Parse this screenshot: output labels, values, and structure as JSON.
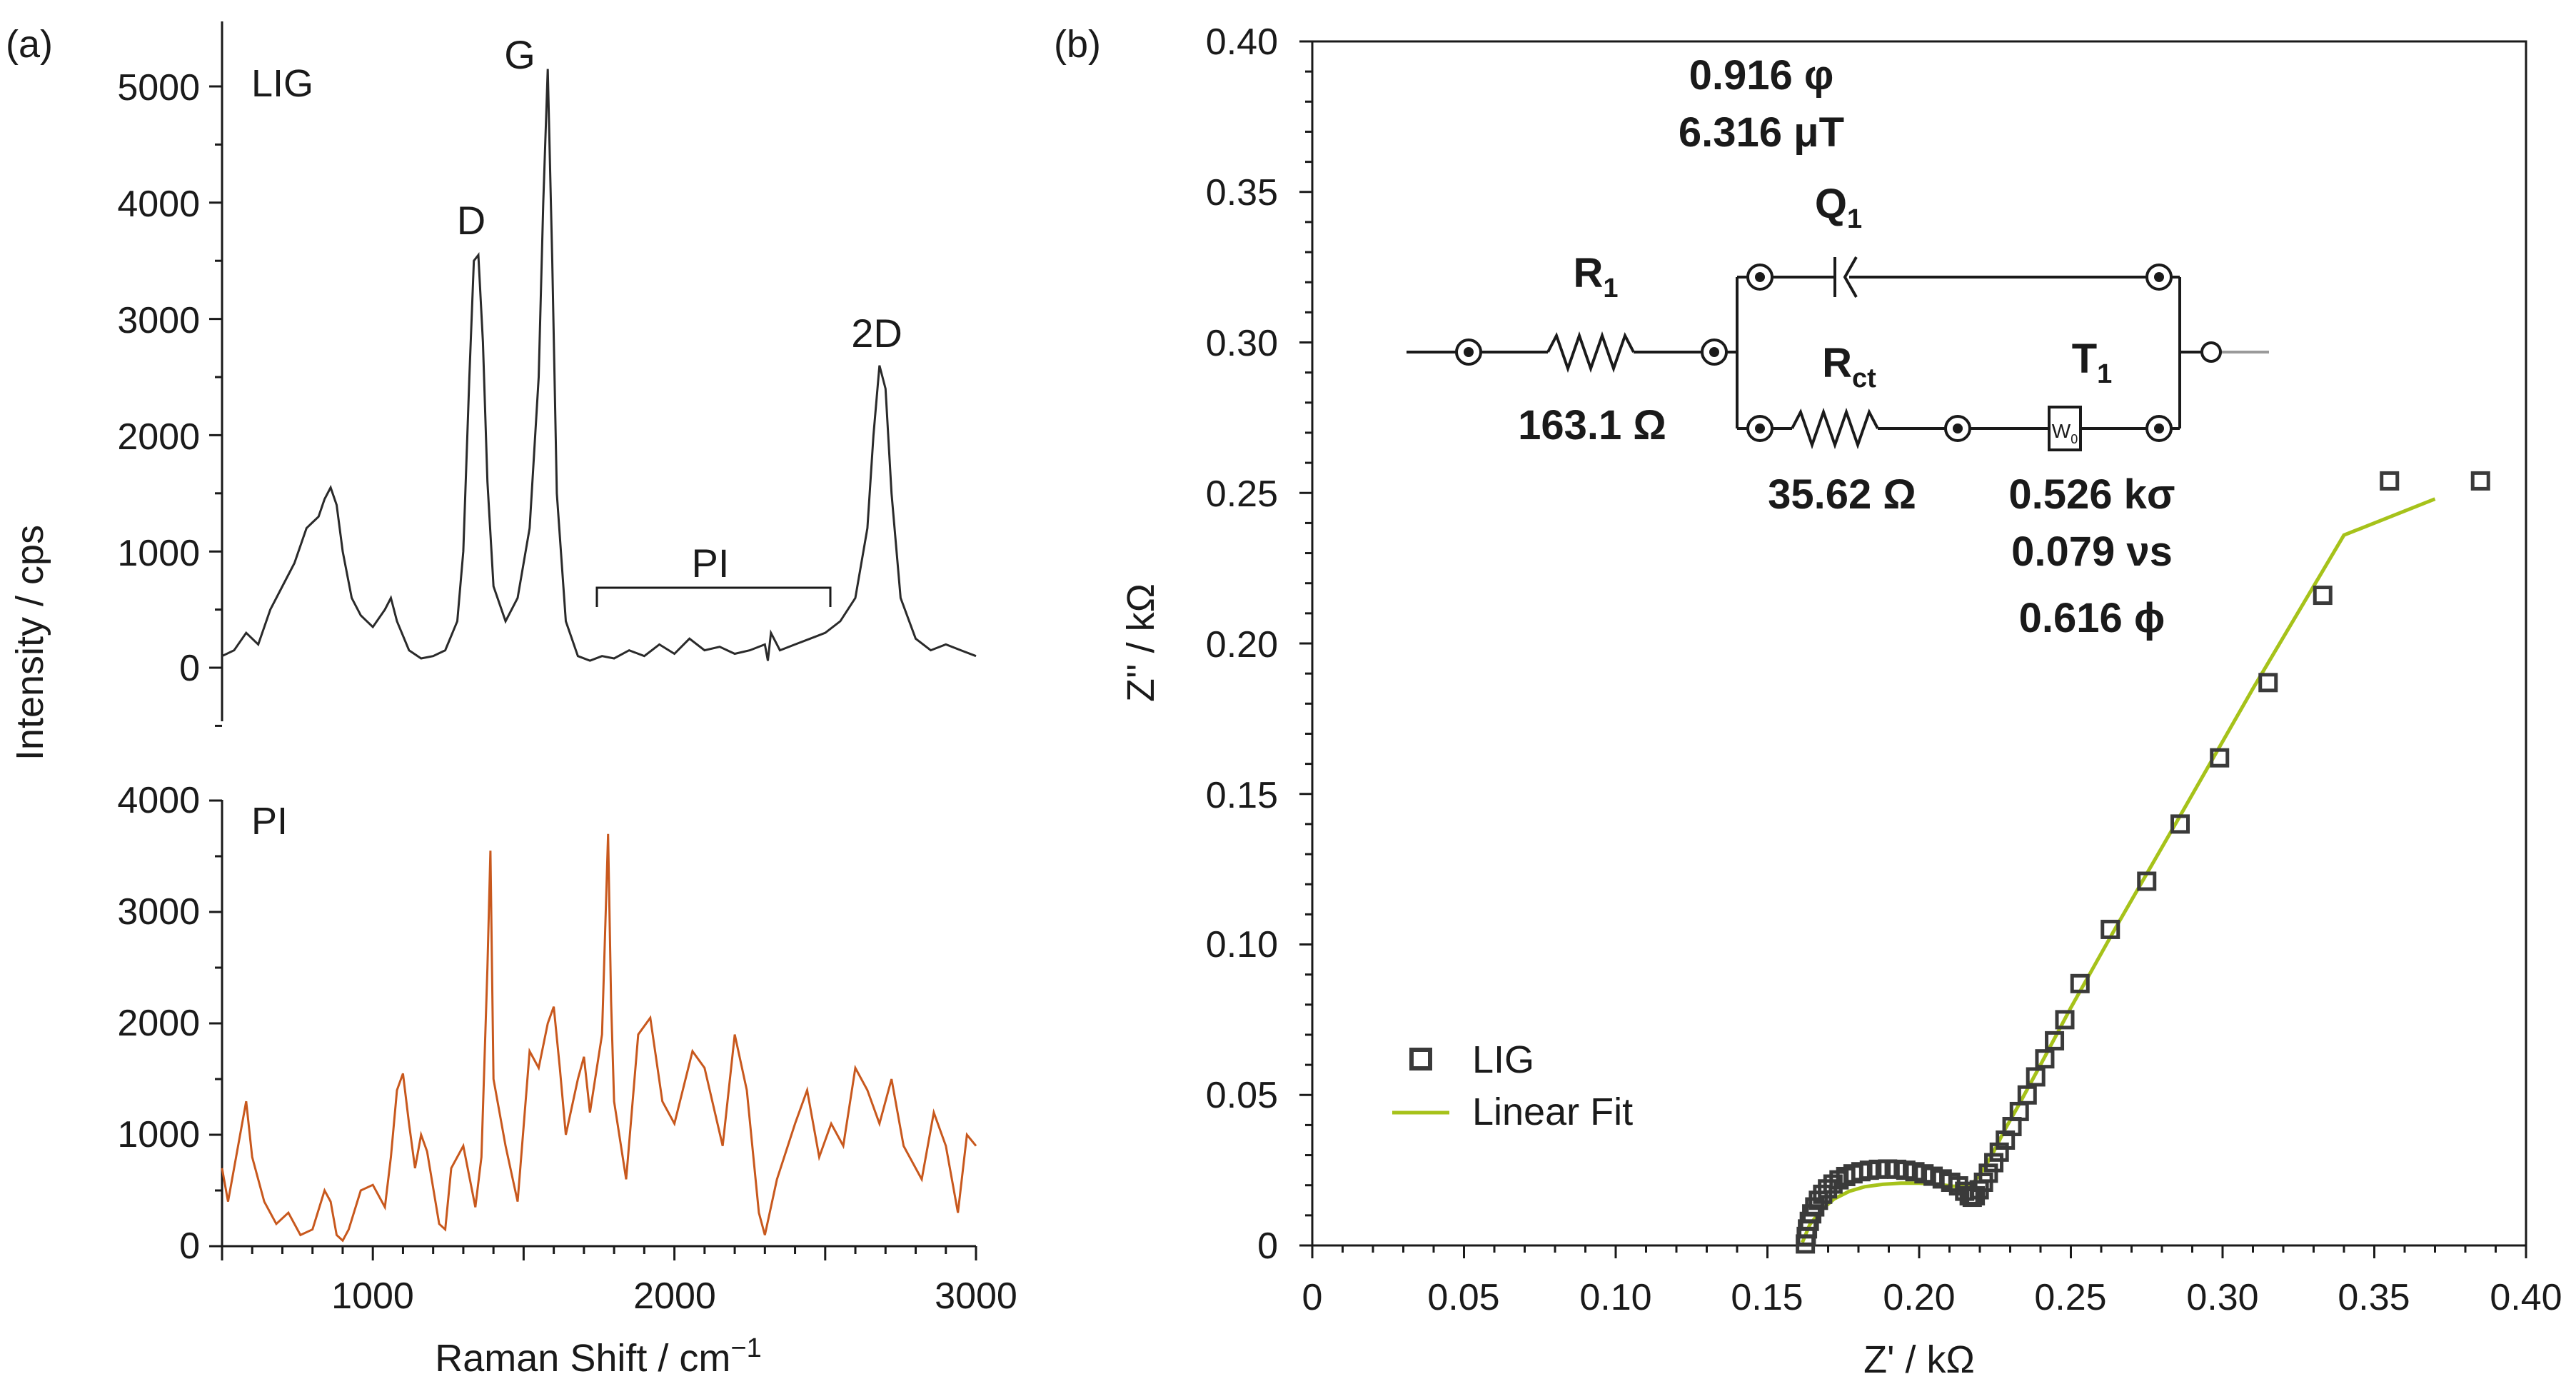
{
  "panel_a": {
    "label": "(a)",
    "ylabel": "Intensity / cps",
    "xlabel_base": "Raman Shift / cm",
    "xlabel_sup": "−1",
    "lig_label": "LIG",
    "pi_label": "PI",
    "peak_D": "D",
    "peak_G": "G",
    "peak_2D": "2D",
    "pi_region_label": "PI"
  },
  "panel_b": {
    "label": "(b)",
    "ylabel": "Z'' / kΩ",
    "xlabel": "Z' / kΩ",
    "legend_lig": "LIG",
    "legend_fit": "Linear Fit",
    "circuit": {
      "q1_val1": "0.916 φ",
      "q1_val2": "6.316 μT",
      "q1_name": "Q",
      "q1_sub": "1",
      "r1_name": "R",
      "r1_sub": "1",
      "r1_val": "163.1 Ω",
      "rct_name": "R",
      "rct_sub": "ct",
      "rct_val": "35.62 Ω",
      "t1_name": "T",
      "t1_sub": "1",
      "w0_name": "W",
      "w0_sub": "0",
      "t1_val1": "0.526 kσ",
      "t1_val2": "0.079 νs",
      "t1_val3": "0.616 ϕ"
    }
  },
  "colors": {
    "lig": "#2a2a2a",
    "pi": "#c8581d",
    "fit": "#a6c21a",
    "marker": "#3a3a3a",
    "source_lead": "#9a9a9a"
  },
  "chart_data": [
    {
      "type": "line",
      "title": "LIG",
      "xlabel": "Raman Shift / cm−1",
      "ylabel": "Intensity / cps",
      "xlim": [
        500,
        3000
      ],
      "ylim": [
        -500,
        5400
      ],
      "x_ticks": [
        1000,
        2000,
        3000
      ],
      "y_ticks": [
        0,
        1000,
        2000,
        3000,
        4000,
        5000
      ],
      "series": [
        {
          "name": "LIG",
          "x": [
            500,
            540,
            580,
            620,
            660,
            700,
            740,
            780,
            800,
            820,
            840,
            860,
            880,
            900,
            930,
            960,
            1000,
            1040,
            1060,
            1080,
            1120,
            1160,
            1200,
            1240,
            1280,
            1300,
            1320,
            1335,
            1350,
            1365,
            1380,
            1400,
            1440,
            1480,
            1520,
            1550,
            1565,
            1580,
            1595,
            1610,
            1640,
            1680,
            1720,
            1760,
            1800,
            1850,
            1900,
            1950,
            2000,
            2050,
            2100,
            2150,
            2200,
            2250,
            2300,
            2310,
            2320,
            2350,
            2400,
            2450,
            2500,
            2550,
            2600,
            2640,
            2660,
            2680,
            2700,
            2720,
            2750,
            2800,
            2850,
            2900,
            2950,
            3000
          ],
          "y": [
            100,
            150,
            300,
            200,
            500,
            700,
            900,
            1200,
            1250,
            1300,
            1450,
            1550,
            1400,
            1000,
            600,
            450,
            350,
            500,
            600,
            400,
            150,
            80,
            100,
            150,
            400,
            1000,
            2500,
            3500,
            3550,
            2800,
            1600,
            700,
            400,
            600,
            1200,
            2500,
            4000,
            5150,
            3500,
            1500,
            400,
            100,
            60,
            100,
            80,
            150,
            100,
            200,
            120,
            250,
            150,
            180,
            120,
            150,
            200,
            60,
            300,
            150,
            200,
            250,
            300,
            400,
            600,
            1200,
            2000,
            2600,
            2400,
            1500,
            600,
            250,
            150,
            200,
            150,
            100
          ]
        }
      ]
    },
    {
      "type": "line",
      "title": "PI",
      "xlabel": "Raman Shift / cm−1",
      "ylabel": "Intensity / cps",
      "xlim": [
        500,
        3000
      ],
      "ylim": [
        0,
        4000
      ],
      "x_ticks": [
        1000,
        2000,
        3000
      ],
      "y_ticks": [
        0,
        1000,
        2000,
        3000,
        4000
      ],
      "series": [
        {
          "name": "PI",
          "x": [
            500,
            520,
            560,
            580,
            600,
            640,
            680,
            720,
            760,
            800,
            840,
            860,
            880,
            900,
            920,
            960,
            1000,
            1040,
            1060,
            1080,
            1100,
            1120,
            1140,
            1160,
            1180,
            1220,
            1240,
            1260,
            1300,
            1340,
            1360,
            1380,
            1390,
            1400,
            1440,
            1480,
            1520,
            1550,
            1580,
            1600,
            1620,
            1640,
            1680,
            1700,
            1720,
            1760,
            1780,
            1790,
            1800,
            1840,
            1880,
            1920,
            1960,
            2000,
            2060,
            2100,
            2160,
            2200,
            2240,
            2280,
            2300,
            2340,
            2400,
            2440,
            2480,
            2520,
            2560,
            2600,
            2640,
            2680,
            2720,
            2760,
            2820,
            2860,
            2900,
            2940,
            2970,
            3000
          ],
          "y": [
            700,
            400,
            1000,
            1300,
            800,
            400,
            200,
            300,
            100,
            150,
            500,
            400,
            100,
            50,
            150,
            500,
            550,
            350,
            800,
            1400,
            1550,
            1100,
            700,
            1000,
            850,
            200,
            150,
            700,
            900,
            350,
            800,
            2500,
            3550,
            1500,
            900,
            400,
            1750,
            1600,
            2000,
            2150,
            1600,
            1000,
            1500,
            1700,
            1200,
            1900,
            3700,
            2200,
            1300,
            600,
            1900,
            2050,
            1300,
            1100,
            1750,
            1600,
            900,
            1900,
            1400,
            300,
            100,
            600,
            1100,
            1400,
            800,
            1100,
            900,
            1600,
            1400,
            1100,
            1500,
            900,
            600,
            1200,
            900,
            300,
            1000,
            900
          ]
        }
      ]
    },
    {
      "type": "scatter",
      "title": "",
      "xlabel": "Z' / kΩ",
      "ylabel": "Z'' / kΩ",
      "xlim": [
        0,
        0.4
      ],
      "ylim": [
        0,
        0.4
      ],
      "x_ticks": [
        0,
        0.05,
        0.1,
        0.15,
        0.2,
        0.25,
        0.3,
        0.35,
        0.4
      ],
      "y_ticks": [
        0,
        0.05,
        0.1,
        0.15,
        0.2,
        0.25,
        0.3,
        0.35,
        0.4
      ],
      "series": [
        {
          "name": "LIG",
          "x": [
            0.1625,
            0.1628,
            0.1632,
            0.1638,
            0.1646,
            0.1656,
            0.1668,
            0.1682,
            0.1698,
            0.1716,
            0.1736,
            0.1758,
            0.1782,
            0.1808,
            0.1836,
            0.1866,
            0.1896,
            0.1926,
            0.1956,
            0.1986,
            0.2016,
            0.2046,
            0.2076,
            0.2104,
            0.213,
            0.215,
            0.2165,
            0.2175,
            0.2185,
            0.2198,
            0.2212,
            0.2228,
            0.2246,
            0.2264,
            0.2284,
            0.2306,
            0.233,
            0.2356,
            0.2384,
            0.2414,
            0.2446,
            0.248,
            0.253,
            0.263,
            0.275,
            0.286,
            0.299,
            0.315,
            0.333,
            0.355,
            0.385
          ],
          "y": [
            0.0005,
            0.003,
            0.0055,
            0.008,
            0.0105,
            0.0128,
            0.015,
            0.017,
            0.0188,
            0.0204,
            0.0218,
            0.0229,
            0.0238,
            0.0245,
            0.025,
            0.0253,
            0.0254,
            0.0253,
            0.025,
            0.0245,
            0.0238,
            0.023,
            0.0221,
            0.021,
            0.0198,
            0.018,
            0.0165,
            0.016,
            0.0165,
            0.0185,
            0.021,
            0.024,
            0.0275,
            0.031,
            0.035,
            0.0395,
            0.0445,
            0.05,
            0.056,
            0.062,
            0.068,
            0.075,
            0.087,
            0.105,
            0.121,
            0.14,
            0.162,
            0.187,
            0.216,
            0.254,
            0.254
          ]
        },
        {
          "name": "Linear Fit",
          "x": [
            0.1615,
            0.164,
            0.168,
            0.172,
            0.177,
            0.182,
            0.188,
            0.194,
            0.2,
            0.206,
            0.211,
            0.215,
            0.218,
            0.221,
            0.224,
            0.228,
            0.233,
            0.24,
            0.25,
            0.265,
            0.285,
            0.31,
            0.34,
            0.37
          ],
          "y": [
            0.001,
            0.007,
            0.012,
            0.0155,
            0.018,
            0.0195,
            0.0203,
            0.0207,
            0.0207,
            0.0203,
            0.0197,
            0.0195,
            0.021,
            0.025,
            0.03,
            0.038,
            0.047,
            0.06,
            0.079,
            0.106,
            0.141,
            0.185,
            0.236,
            0.248
          ]
        }
      ]
    }
  ]
}
